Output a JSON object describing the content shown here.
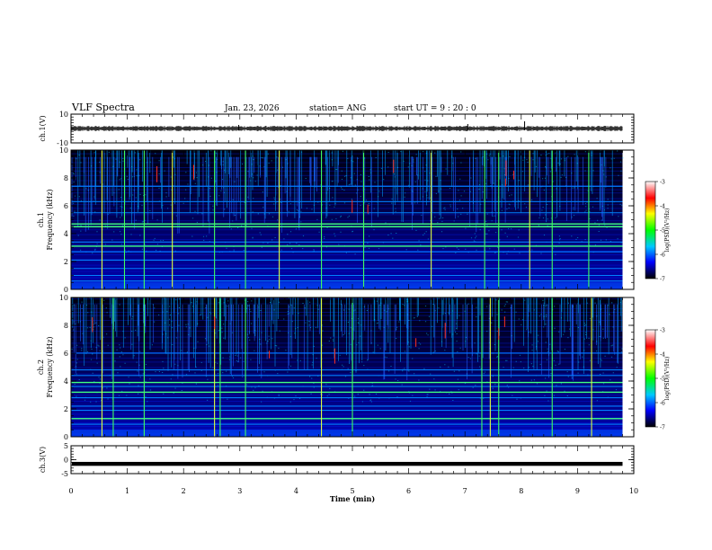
{
  "header": {
    "title": "VLF Spectra",
    "date": "Jan. 23, 2026",
    "station": "station= ANG",
    "start": "start  UT =   9 : 20 : 0"
  },
  "colorbar": {
    "label": "log(PSD)(V²/Hz)",
    "ticks": [
      "-3",
      "-4",
      "-5",
      "-6",
      "-7"
    ],
    "colors": [
      "#ffffff",
      "#ff0000",
      "#ffff00",
      "#00ff00",
      "#00c8ff",
      "#0000ff",
      "#000000"
    ]
  },
  "chart_data": [
    {
      "type": "line",
      "name": "ch1-waveform",
      "ylabel": "ch.1(V)",
      "ylim": [
        -10,
        10
      ],
      "yticks": [
        "10",
        "-10"
      ],
      "baseline": 0
    },
    {
      "type": "heatmap",
      "name": "ch1-spectrogram",
      "ylabel_top": "ch.1",
      "ylabel": "Frequency (kHz)",
      "ylim": [
        0,
        10
      ],
      "yticks": [
        "0",
        "2",
        "4",
        "6",
        "8",
        "10"
      ],
      "tones_khz": [
        0.6,
        1.0,
        1.5,
        2.1,
        2.7,
        3.1,
        3.4,
        4.5,
        4.7,
        5.5,
        6.3,
        7.4
      ],
      "bright_tones_khz": [
        4.5,
        4.7,
        3.1
      ],
      "impulses_min": [
        0.55,
        0.95,
        1.3,
        1.8,
        2.55,
        3.1,
        3.7,
        4.45,
        5.2,
        6.4,
        7.35,
        7.6,
        8.15,
        8.55,
        9.2
      ]
    },
    {
      "type": "heatmap",
      "name": "ch2-spectrogram",
      "ylabel_top": "ch.2",
      "ylabel": "Frequency (kHz)",
      "ylim": [
        0,
        10
      ],
      "yticks": [
        "0",
        "2",
        "4",
        "6",
        "8",
        "10"
      ],
      "tones_khz": [
        0.9,
        1.3,
        1.9,
        2.2,
        2.8,
        3.2,
        3.6,
        3.9,
        4.4,
        4.8,
        6.0
      ],
      "bright_tones_khz": [
        3.9,
        3.2,
        1.3
      ],
      "impulses_min": [
        0.55,
        0.75,
        1.3,
        2.55,
        2.65,
        3.1,
        4.45,
        5.0,
        7.3,
        7.45,
        7.6,
        8.55,
        9.25
      ]
    },
    {
      "type": "line",
      "name": "ch3-waveform",
      "ylabel": "ch.3(V)",
      "ylim": [
        -5,
        5
      ],
      "yticks": [
        "5",
        "0",
        "-5"
      ],
      "baseline": -1.5
    }
  ],
  "xaxis": {
    "label": "Time (min)",
    "xlim": [
      0,
      10
    ],
    "ticks": [
      "0",
      "1",
      "2",
      "3",
      "4",
      "5",
      "6",
      "7",
      "8",
      "9",
      "10"
    ],
    "data_end_min": 9.8
  }
}
